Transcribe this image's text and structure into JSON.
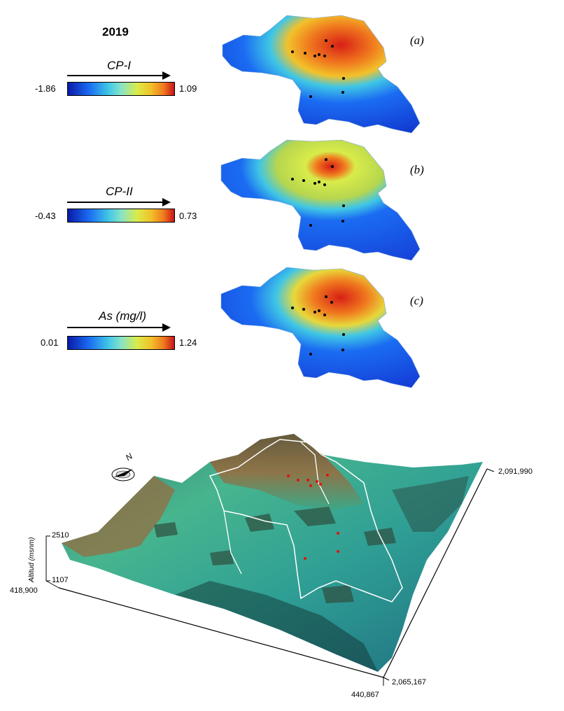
{
  "title": "2019",
  "colorbars": [
    {
      "label": "CP-I",
      "min": "-1.86",
      "max": "1.09"
    },
    {
      "label": "CP-II",
      "min": "-0.43",
      "max": "0.73"
    },
    {
      "label": "As (mg/l)",
      "min": "0.01",
      "max": "1.24"
    }
  ],
  "panels": [
    {
      "label": "(a)"
    },
    {
      "label": "(b)"
    },
    {
      "label": "(c)"
    }
  ],
  "terrain": {
    "altitude_label": "Altitud (msnm)",
    "altitude_max": "2510",
    "altitude_min": "1107",
    "coords": {
      "west": "418,900",
      "east": "440,867",
      "south": "2,065,167",
      "north": "2,091,990"
    },
    "north_label": "N"
  },
  "colors": {
    "low": "#0a1aa8",
    "mid": "#86e3c8",
    "high": "#c8141a",
    "terrain_green": "#3aa987",
    "terrain_brown": "#9a6a3c",
    "sample_points_top": "#000000",
    "sample_points_bottom": "#e3120b"
  }
}
